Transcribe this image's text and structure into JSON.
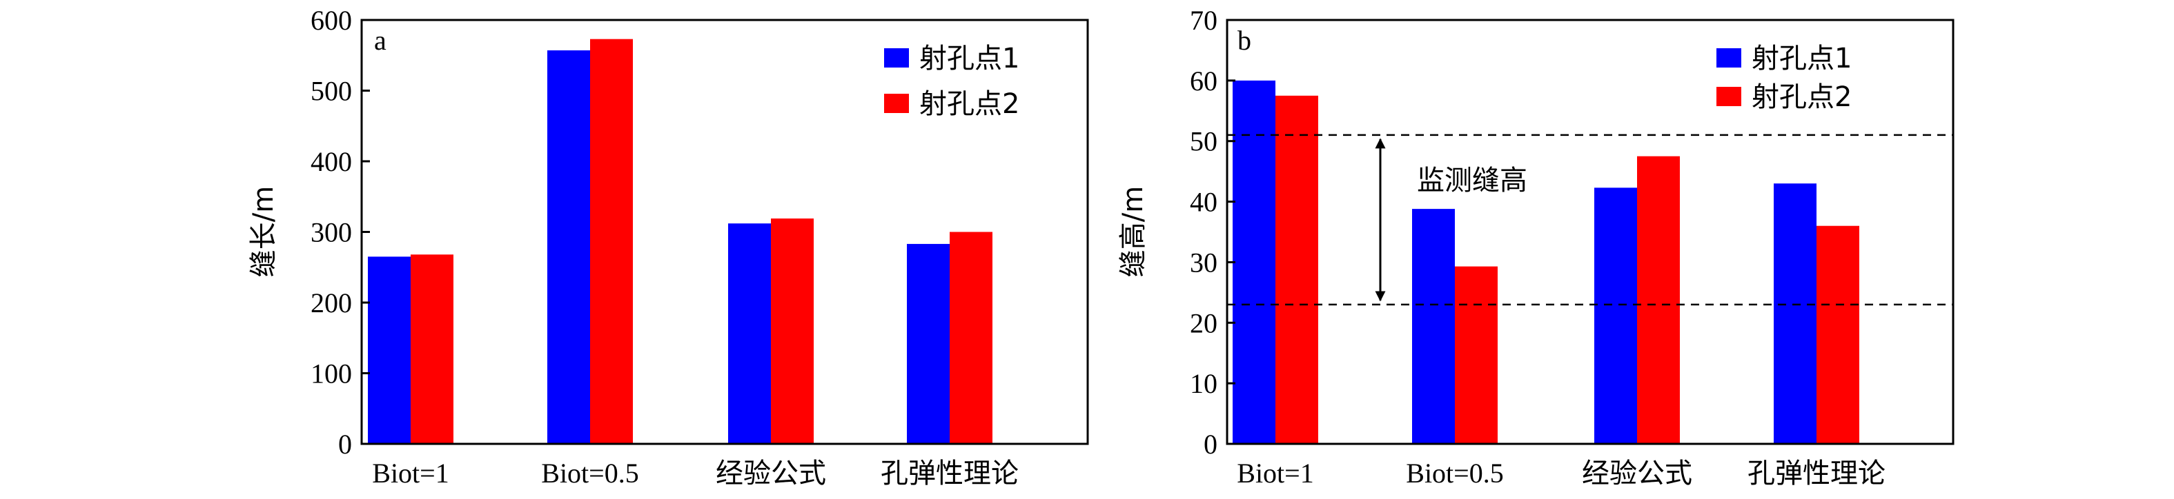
{
  "colors": {
    "series1": "#0000ff",
    "series2": "#ff0000",
    "axis": "#000000"
  },
  "chart_data": [
    {
      "type": "bar",
      "panel_label": "a",
      "title": "",
      "xlabel": "",
      "ylabel": "缝长/m",
      "ylim": [
        0,
        600
      ],
      "yticks": [
        0,
        100,
        200,
        300,
        400,
        500,
        600
      ],
      "categories": [
        "Biot=1",
        "Biot=0.5",
        "经验公式",
        "孔弹性理论"
      ],
      "series": [
        {
          "name": "射孔点1",
          "values": [
            265,
            557,
            312,
            283
          ]
        },
        {
          "name": "射孔点2",
          "values": [
            268,
            573,
            319,
            300
          ]
        }
      ],
      "legend_position": "top-right",
      "grid": false
    },
    {
      "type": "bar",
      "panel_label": "b",
      "title": "",
      "xlabel": "",
      "ylabel": "缝高/m",
      "ylim": [
        0,
        70
      ],
      "yticks": [
        0,
        10,
        20,
        30,
        40,
        50,
        60,
        70
      ],
      "categories": [
        "Biot=1",
        "Biot=0.5",
        "经验公式",
        "孔弹性理论"
      ],
      "series": [
        {
          "name": "射孔点1",
          "values": [
            60,
            38.8,
            42.3,
            43
          ]
        },
        {
          "name": "射孔点2",
          "values": [
            57.5,
            29.3,
            47.5,
            36
          ]
        }
      ],
      "reference_lines": [
        51,
        23
      ],
      "annotation": "监测缝高",
      "legend_position": "top-right",
      "grid": false
    }
  ]
}
